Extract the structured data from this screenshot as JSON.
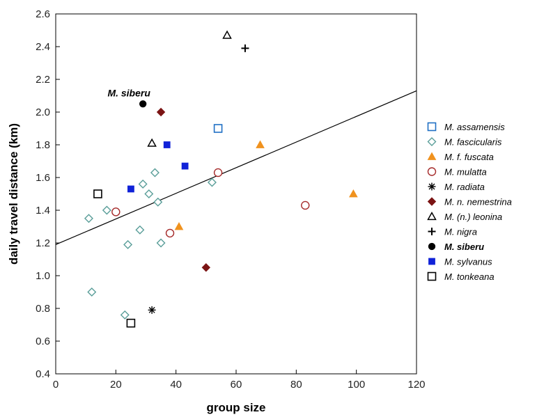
{
  "chart_data": {
    "type": "scatter",
    "title": "",
    "xlabel": "group size",
    "ylabel": "daily travel distance (km)",
    "xlim": [
      0,
      120
    ],
    "ylim": [
      0.4,
      2.6
    ],
    "xticks": [
      "0",
      "20",
      "40",
      "60",
      "80",
      "100",
      "120"
    ],
    "yticks": [
      "0.4",
      "0.6",
      "0.8",
      "1.0",
      "1.2",
      "1.4",
      "1.6",
      "1.8",
      "2.0",
      "2.2",
      "2.4",
      "2.6"
    ],
    "grid": false,
    "legend_position": "right",
    "annotation": "M. siberu",
    "regression_line": {
      "x0": 0,
      "y0": 1.19,
      "x1": 120,
      "y1": 2.13
    },
    "series": [
      {
        "name": "M. assamensis",
        "marker": "open-square",
        "color": "#1f6fc4",
        "bold": false,
        "points": [
          [
            54,
            1.9
          ]
        ]
      },
      {
        "name": "M. fascicularis",
        "marker": "open-diamond",
        "color": "#5a9e99",
        "bold": false,
        "points": [
          [
            11,
            1.35
          ],
          [
            17,
            1.4
          ],
          [
            12,
            0.9
          ],
          [
            23,
            0.76
          ],
          [
            24,
            1.19
          ],
          [
            28,
            1.28
          ],
          [
            29,
            1.56
          ],
          [
            31,
            1.5
          ],
          [
            33,
            1.63
          ],
          [
            34,
            1.45
          ],
          [
            35,
            1.2
          ],
          [
            52,
            1.57
          ]
        ]
      },
      {
        "name": "M. f. fuscata",
        "marker": "filled-triangle",
        "color": "#f0921e",
        "bold": false,
        "points": [
          [
            41,
            1.3
          ],
          [
            68,
            1.8
          ],
          [
            99,
            1.5
          ]
        ]
      },
      {
        "name": "M. mulatta",
        "marker": "open-circle",
        "color": "#a52a2a",
        "bold": false,
        "points": [
          [
            20,
            1.39
          ],
          [
            38,
            1.26
          ],
          [
            54,
            1.63
          ],
          [
            83,
            1.43
          ]
        ]
      },
      {
        "name": "M. radiata",
        "marker": "asterisk",
        "color": "#000000",
        "bold": false,
        "points": [
          [
            32,
            0.79
          ]
        ]
      },
      {
        "name": "M. n. nemestrina",
        "marker": "filled-diamond",
        "color": "#7b1414",
        "bold": false,
        "points": [
          [
            35,
            2.0
          ],
          [
            50,
            1.05
          ]
        ]
      },
      {
        "name": "M. (n.) leonina",
        "marker": "open-triangle",
        "color": "#000000",
        "bold": false,
        "points": [
          [
            32,
            1.81
          ],
          [
            57,
            2.47
          ]
        ]
      },
      {
        "name": "M. nigra",
        "marker": "plus",
        "color": "#000000",
        "bold": false,
        "points": [
          [
            63,
            2.39
          ]
        ]
      },
      {
        "name": "M. siberu",
        "marker": "filled-circle",
        "color": "#000000",
        "bold": true,
        "points": [
          [
            29,
            2.05
          ]
        ]
      },
      {
        "name": "M. sylvanus",
        "marker": "filled-square",
        "color": "#1022d8",
        "bold": false,
        "points": [
          [
            25,
            1.53
          ],
          [
            37,
            1.8
          ],
          [
            43,
            1.67
          ]
        ]
      },
      {
        "name": "M. tonkeana",
        "marker": "open-square",
        "color": "#000000",
        "bold": false,
        "points": [
          [
            14,
            1.5
          ],
          [
            25,
            0.71
          ]
        ]
      }
    ]
  }
}
